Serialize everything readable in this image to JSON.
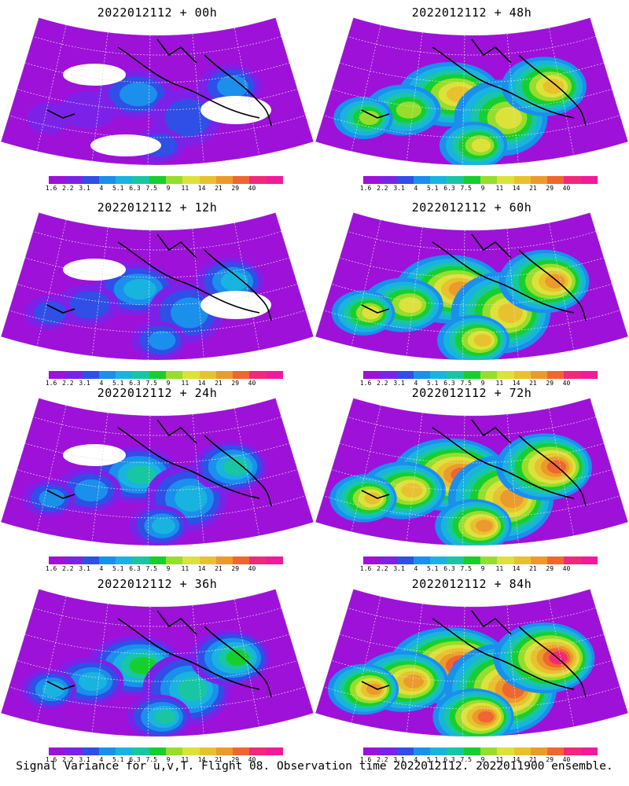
{
  "panels": [
    {
      "title": "2022012112 + 00h",
      "level": 0
    },
    {
      "title": "2022012112 + 12h",
      "level": 1
    },
    {
      "title": "2022012112 + 24h",
      "level": 2
    },
    {
      "title": "2022012112 + 36h",
      "level": 3
    },
    {
      "title": "2022012112 + 48h",
      "level": 4
    },
    {
      "title": "2022012112 + 60h",
      "level": 5
    },
    {
      "title": "2022012112 + 72h",
      "level": 6
    },
    {
      "title": "2022012112 + 84h",
      "level": 7
    }
  ],
  "colorbar": {
    "labels": [
      "1.6",
      "2.2",
      "3.1",
      "4",
      "5.1",
      "6.3",
      "7.5",
      "9",
      "11",
      "14",
      "21",
      "29",
      "40"
    ],
    "colors": [
      "#9e11d9",
      "#7c22e8",
      "#2f4fe6",
      "#1a8fec",
      "#19b3e0",
      "#19c6a3",
      "#16cf2e",
      "#97dd2c",
      "#dde23a",
      "#e8c22e",
      "#ec9a2b",
      "#ef6631",
      "#f2297a",
      "#f21a9b"
    ]
  },
  "caption": "Signal Variance for u,v,T. Flight 08. Observation time 2022012112. 2022011900 ensemble.",
  "chart_data": {
    "type": "heatmap",
    "title": "Signal Variance for u,v,T. Flight 08. Observation time 2022012112. 2022011900 ensemble.",
    "base_time": "2022012112",
    "forecast_lead_hours": [
      0,
      12,
      24,
      36,
      48,
      60,
      72,
      84
    ],
    "colorbar_levels": [
      1.6,
      2.2,
      3.1,
      4,
      5.1,
      6.3,
      7.5,
      9,
      11,
      14,
      21,
      29,
      40
    ],
    "projection": "polar sector",
    "background_masked_regions": "white"
  }
}
